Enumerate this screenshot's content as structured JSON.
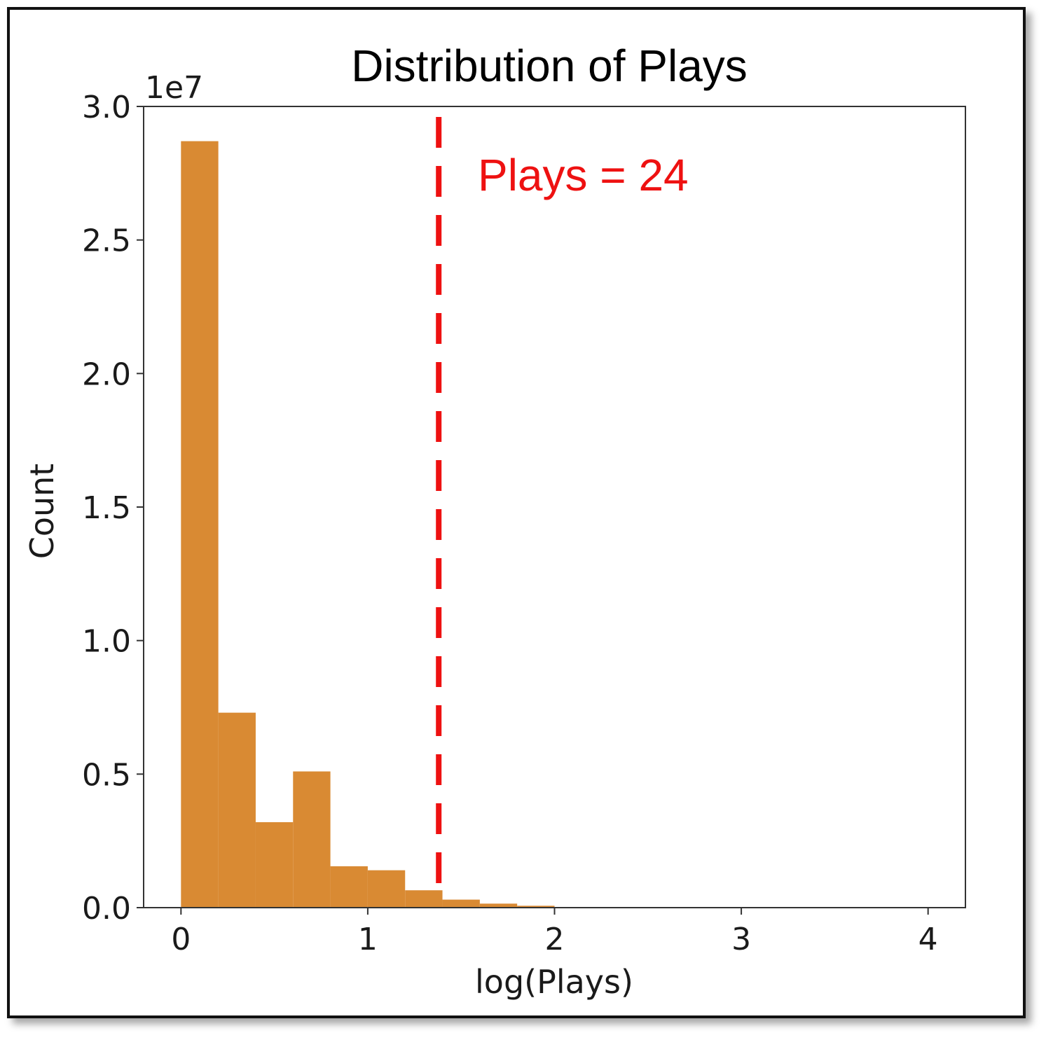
{
  "chart_data": {
    "type": "bar",
    "title": "Distribution of Plays",
    "xlabel": "log(Plays)",
    "ylabel": "Count",
    "y_multiplier_label": "1e7",
    "xlim": [
      -0.2,
      4.2
    ],
    "ylim": [
      0,
      3.0
    ],
    "x_ticks": [
      0,
      1,
      2,
      3,
      4
    ],
    "y_ticks": [
      0.0,
      0.5,
      1.0,
      1.5,
      2.0,
      2.5,
      3.0
    ],
    "bin_width": 0.2,
    "bins": [
      {
        "x_start": 0.0,
        "count": 2.87
      },
      {
        "x_start": 0.2,
        "count": 0.73
      },
      {
        "x_start": 0.4,
        "count": 0.32
      },
      {
        "x_start": 0.6,
        "count": 0.51
      },
      {
        "x_start": 0.8,
        "count": 0.155
      },
      {
        "x_start": 1.0,
        "count": 0.14
      },
      {
        "x_start": 1.2,
        "count": 0.065
      },
      {
        "x_start": 1.4,
        "count": 0.03
      },
      {
        "x_start": 1.6,
        "count": 0.015
      },
      {
        "x_start": 1.8,
        "count": 0.007
      }
    ],
    "bar_color": "#d98a33",
    "threshold": {
      "x": 1.38,
      "label": "Plays = 24",
      "color": "#ee1111",
      "style": "dashed"
    },
    "grid": false,
    "legend": "none"
  }
}
